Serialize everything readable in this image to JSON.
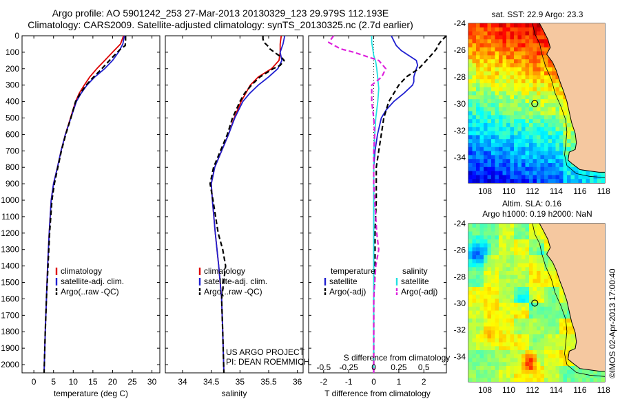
{
  "titles": {
    "line1": "Argo profile: AO 5901242_253 27-Mar-2013 20130329_123 29.979S 112.193E",
    "line2": "Climatology: CARS2009. Satellite-adjusted climatology: synTS_20130325.nc (2.7d earlier)"
  },
  "chart_data": [
    {
      "type": "line",
      "xlabel": "temperature (deg C)",
      "ylabel": "",
      "xlim": [
        -3,
        32
      ],
      "ylim": [
        2050,
        0
      ],
      "xticks": [
        0,
        5,
        10,
        15,
        20,
        25,
        30
      ],
      "yticks": [
        0,
        100,
        200,
        300,
        400,
        500,
        600,
        700,
        800,
        900,
        1000,
        1100,
        1200,
        1300,
        1400,
        1500,
        1600,
        1700,
        1800,
        1900,
        2000
      ],
      "legend": [
        "climatology",
        "satellite-adj. clim.",
        "Argo(..raw -QC)"
      ],
      "legend_position": "lower-center",
      "series": [
        {
          "name": "climatology",
          "color": "#dd0000",
          "dash": "solid",
          "depth": [
            0,
            50,
            100,
            150,
            200,
            250,
            300,
            350,
            400,
            500,
            600,
            700,
            800,
            900,
            1000,
            1200,
            1400,
            1600,
            1800,
            2050
          ],
          "values": [
            22.8,
            22.0,
            20.0,
            18.0,
            16.0,
            14.2,
            12.8,
            11.5,
            10.6,
            9.3,
            8.0,
            6.9,
            6.0,
            5.0,
            4.4,
            3.9,
            3.5,
            3.2,
            2.9,
            2.6
          ]
        },
        {
          "name": "satellite-adj. clim.",
          "color": "#1f1fd0",
          "dash": "solid",
          "depth": [
            0,
            50,
            100,
            150,
            200,
            250,
            300,
            350,
            400,
            500,
            600,
            700,
            800,
            900,
            1000,
            1200,
            1400,
            1600,
            1800,
            2050
          ],
          "values": [
            23.0,
            22.6,
            21.5,
            20.0,
            18.0,
            15.5,
            13.5,
            12.0,
            10.8,
            9.4,
            8.0,
            6.9,
            6.0,
            5.0,
            4.4,
            3.9,
            3.5,
            3.2,
            2.9,
            2.6
          ]
        },
        {
          "name": "Argo(..raw -QC)",
          "color": "#000000",
          "dash": "dashed",
          "depth": [
            0,
            30,
            60,
            75,
            100,
            150,
            200,
            250,
            300,
            350,
            400,
            500,
            600,
            700,
            800,
            900,
            1000,
            1200,
            1400,
            1600,
            1800,
            2050
          ],
          "values": [
            23.3,
            23.3,
            23.2,
            22.3,
            21.2,
            19.2,
            17.3,
            15.2,
            13.3,
            11.8,
            10.6,
            9.4,
            8.1,
            7.0,
            6.1,
            5.2,
            4.6,
            4.0,
            3.6,
            3.2,
            2.9,
            2.6
          ]
        }
      ],
      "annotations": []
    },
    {
      "type": "line",
      "xlabel": "salinity",
      "ylabel": "",
      "xlim": [
        33.7,
        36.1
      ],
      "ylim": [
        2050,
        0
      ],
      "xticks": [
        34,
        34.5,
        35,
        35.5,
        36
      ],
      "legend": [
        "climatology",
        "satellite-adj. clim.",
        "Argo(..raw -QC)"
      ],
      "legend_position": "lower-center",
      "series": [
        {
          "name": "climatology",
          "color": "#dd0000",
          "dash": "solid",
          "depth": [
            0,
            50,
            100,
            150,
            200,
            250,
            300,
            350,
            400,
            500,
            600,
            700,
            800,
            900,
            1000,
            1200,
            1400,
            1600,
            1800,
            2050
          ],
          "values": [
            35.72,
            35.7,
            35.7,
            35.68,
            35.55,
            35.32,
            35.18,
            35.1,
            35.02,
            34.9,
            34.8,
            34.68,
            34.56,
            34.5,
            34.52,
            34.57,
            34.63,
            34.68,
            34.7,
            34.72
          ]
        },
        {
          "name": "satellite-adj. clim.",
          "color": "#1f1fd0",
          "dash": "solid",
          "depth": [
            0,
            50,
            100,
            150,
            200,
            250,
            300,
            350,
            400,
            500,
            600,
            700,
            800,
            900,
            1000,
            1200,
            1400,
            1600,
            1800,
            2050
          ],
          "values": [
            35.78,
            35.75,
            35.7,
            35.73,
            35.66,
            35.5,
            35.32,
            35.17,
            35.05,
            34.91,
            34.8,
            34.68,
            34.56,
            34.5,
            34.52,
            34.57,
            34.63,
            34.68,
            34.7,
            34.72
          ]
        },
        {
          "name": "Argo(..raw -QC)",
          "color": "#000000",
          "dash": "dashed",
          "depth": [
            0,
            20,
            40,
            60,
            80,
            100,
            130,
            150,
            180,
            200,
            250,
            300,
            350,
            400,
            500,
            600,
            700,
            800,
            900,
            1000,
            1200,
            1300,
            1400,
            1600,
            1800,
            2050
          ],
          "values": [
            35.4,
            35.4,
            35.42,
            35.48,
            35.52,
            35.6,
            35.72,
            35.77,
            35.7,
            35.58,
            35.35,
            35.2,
            35.08,
            35.0,
            34.87,
            34.78,
            34.66,
            34.54,
            34.48,
            34.53,
            34.62,
            34.7,
            34.75,
            34.68,
            34.7,
            34.72
          ]
        }
      ],
      "annotations": [
        "US ARGO PROJECT",
        "PI: DEAN ROEMMICH"
      ]
    },
    {
      "type": "line",
      "xlabel": "T difference from climatology",
      "xlabel_top": "S difference from climatology",
      "ylabel": "",
      "xlim": [
        -2.6,
        2.9
      ],
      "xlim_S": [
        -0.65,
        0.725
      ],
      "ylim": [
        2050,
        0
      ],
      "xticks": [
        -2,
        -1,
        0,
        1,
        2
      ],
      "xticks_S": [
        -0.5,
        -0.25,
        0,
        0.25,
        0.5
      ],
      "xtick_labels_S": [
        "-0.5",
        "-0.25",
        "0",
        "0.25",
        "0.5"
      ],
      "legend_groups": [
        {
          "title": "temperature",
          "items": [
            "satellite",
            "Argo(-adj)"
          ]
        },
        {
          "title": "salinity",
          "items": [
            "satellite",
            "Argo(-adj)"
          ]
        }
      ],
      "legend_position": "lower-center",
      "series": [
        {
          "name": "temperature satellite",
          "color": "#1f1fd0",
          "dash": "solid",
          "axis": "T",
          "depth": [
            0,
            30,
            60,
            90,
            120,
            150,
            180,
            200,
            250,
            280,
            300,
            350,
            400,
            450,
            500,
            600,
            700,
            800,
            900,
            1000,
            2050
          ],
          "values": [
            0.7,
            0.8,
            0.9,
            1.1,
            1.4,
            1.7,
            1.75,
            1.7,
            1.6,
            1.6,
            1.55,
            1.2,
            0.8,
            0.5,
            0.3,
            0.15,
            0.05,
            0.0,
            0.0,
            0.0,
            0.0
          ]
        },
        {
          "name": "temperature Argo(-adj)",
          "color": "#000000",
          "dash": "dashed",
          "axis": "T",
          "depth": [
            0,
            30,
            50,
            80,
            100,
            150,
            200,
            250,
            300,
            400,
            500,
            600,
            700,
            800,
            900,
            1000,
            1200,
            1400,
            1600,
            1800,
            2050
          ],
          "values": [
            2.9,
            2.7,
            2.6,
            2.5,
            2.4,
            2.1,
            1.8,
            1.3,
            1.0,
            0.6,
            0.4,
            0.3,
            0.2,
            0.1,
            0.1,
            0.1,
            0.05,
            0.05,
            0.0,
            0.0,
            0.0
          ]
        },
        {
          "name": "salinity satellite",
          "color": "#22e0e0",
          "dash": "solid",
          "axis": "S",
          "depth": [
            0,
            40,
            80,
            120,
            160,
            200,
            260,
            320,
            400,
            500,
            600,
            700,
            800,
            1000,
            2050
          ],
          "values": [
            -0.02,
            -0.02,
            -0.01,
            0.0,
            0.02,
            0.03,
            0.04,
            0.05,
            0.04,
            0.02,
            0.01,
            0.0,
            0.0,
            0.0,
            0.0
          ]
        },
        {
          "name": "salinity Argo(-adj)",
          "color": "#dd22dd",
          "dash": "dashed",
          "axis": "S",
          "depth": [
            0,
            40,
            80,
            100,
            150,
            200,
            250,
            300,
            400,
            500,
            600,
            700,
            800,
            900,
            1000,
            1200,
            1300,
            1400,
            1600,
            2050
          ],
          "values": [
            -0.4,
            -0.45,
            -0.33,
            -0.2,
            0.05,
            0.12,
            0.08,
            -0.02,
            -0.02,
            0.0,
            0.01,
            0.0,
            0.0,
            0.0,
            0.01,
            0.03,
            0.05,
            0.02,
            0.0,
            0.0
          ]
        }
      ]
    }
  ],
  "maps": [
    {
      "title": "sat. SST: 22.9  Argo: 23.3",
      "xticks": [
        "108",
        "110",
        "112",
        "114",
        "116",
        "118"
      ],
      "yticks": [
        "-24",
        "-26",
        "-28",
        "-30",
        "-32",
        "-34"
      ],
      "colormap": "jet",
      "float_marker": {
        "lon": 112.193,
        "lat": -29.979
      }
    },
    {
      "title_line1": "Altim. SLA: 0.16",
      "title_line2": "Argo h1000: 0.19 h2000: NaN",
      "xticks": [
        "108",
        "110",
        "112",
        "114",
        "116",
        "118"
      ],
      "yticks": [
        "-24",
        "-26",
        "-28",
        "-30",
        "-32",
        "-34"
      ],
      "colormap": "jet",
      "float_marker": {
        "lon": 112.193,
        "lat": -29.979
      }
    }
  ],
  "side_stamp": "©IMOS 02-Apr-2013 17:00:40"
}
